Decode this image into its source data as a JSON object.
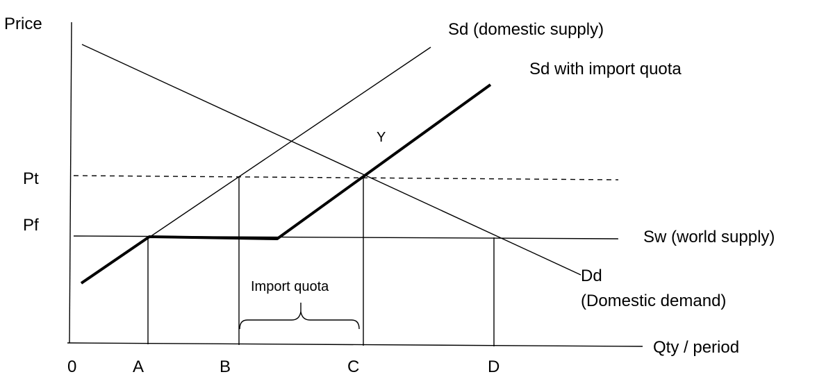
{
  "axes": {
    "y_label": "Price",
    "x_label": "Qty / period",
    "origin_label": "0",
    "price_labels": {
      "pt": "Pt",
      "pf": "Pf"
    },
    "qty_labels": {
      "a": "A",
      "b": "B",
      "c": "C",
      "d": "D"
    }
  },
  "curves": {
    "domestic_supply": "Sd (domestic supply)",
    "supply_with_quota": "Sd with import quota",
    "world_supply": "Sw (world supply)",
    "domestic_demand": "Dd",
    "domestic_demand_sub": "(Domestic demand)"
  },
  "annotations": {
    "point_y": "Y",
    "import_quota": "Import quota"
  },
  "colors": {
    "ink": "#000000",
    "background": "#ffffff"
  }
}
